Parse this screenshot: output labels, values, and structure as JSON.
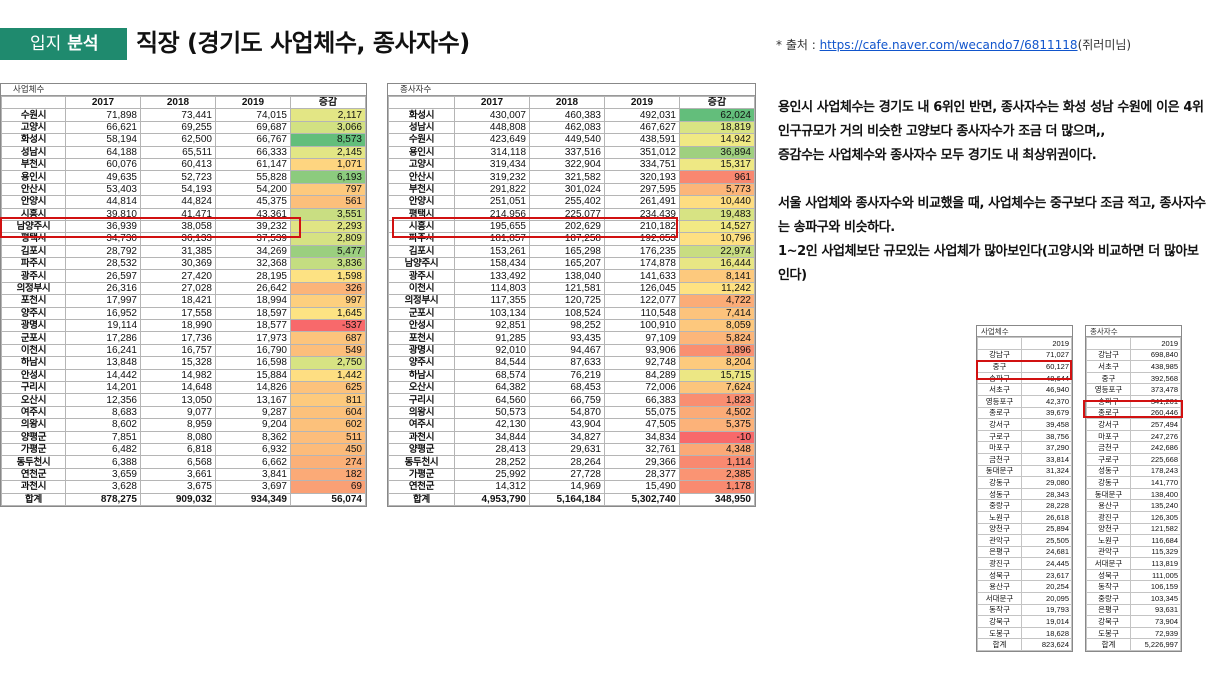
{
  "header": {
    "tag_plain": "입지",
    "tag_bold": "분석",
    "title": "직장 (경기도 사업체수, 종사자수)",
    "source_prefix": "* 출처 : ",
    "source_link": "https://cafe.naver.com/wecando7/6811118",
    "source_suffix": "(쥐러미님)"
  },
  "colors": {
    "header_bg": "#1f8a6e",
    "highlight_border": "#d11111",
    "positive_high": "#63be7b",
    "mid": "#ffeb84",
    "negative": "#f8696b"
  },
  "biz_table": {
    "caption": "사업체수",
    "columns": [
      "",
      "2017",
      "2018",
      "2019",
      "증감"
    ],
    "rows": [
      {
        "n": "수원시",
        "a": "71,898",
        "b": "73,441",
        "c": "74,015",
        "d": "2,117",
        "bg": "#e3e685"
      },
      {
        "n": "고양시",
        "a": "66,621",
        "b": "69,255",
        "c": "69,687",
        "d": "3,066",
        "bg": "#d2e182"
      },
      {
        "n": "화성시",
        "a": "58,194",
        "b": "62,500",
        "c": "66,767",
        "d": "8,573",
        "bg": "#63be7b"
      },
      {
        "n": "성남시",
        "a": "64,188",
        "b": "65,511",
        "c": "66,333",
        "d": "2,145",
        "bg": "#e3e685"
      },
      {
        "n": "부천시",
        "a": "60,076",
        "b": "60,413",
        "c": "61,147",
        "d": "1,071",
        "bg": "#fed580"
      },
      {
        "n": "용인시",
        "a": "49,635",
        "b": "52,723",
        "c": "55,828",
        "d": "6,193",
        "bg": "#8ccb7e"
      },
      {
        "n": "안산시",
        "a": "53,403",
        "b": "54,193",
        "c": "54,200",
        "d": "797",
        "bg": "#fdc97d"
      },
      {
        "n": "안양시",
        "a": "44,814",
        "b": "44,824",
        "c": "45,375",
        "d": "561",
        "bg": "#fcbf7b"
      },
      {
        "n": "시흥시",
        "a": "39,810",
        "b": "41,471",
        "c": "43,361",
        "d": "3,551",
        "bg": "#c9de82"
      },
      {
        "n": "남양주시",
        "a": "36,939",
        "b": "38,058",
        "c": "39,232",
        "d": "2,293",
        "bg": "#e0e584"
      },
      {
        "n": "평택시",
        "a": "34,730",
        "b": "36,133",
        "c": "37,539",
        "d": "2,809",
        "bg": "#d6e283"
      },
      {
        "n": "김포시",
        "a": "28,792",
        "b": "31,385",
        "c": "34,269",
        "d": "5,477",
        "bg": "#9bcf7f"
      },
      {
        "n": "파주시",
        "a": "28,532",
        "b": "30,369",
        "c": "32,368",
        "d": "3,836",
        "bg": "#c4dd81"
      },
      {
        "n": "광주시",
        "a": "26,597",
        "b": "27,420",
        "c": "28,195",
        "d": "1,598",
        "bg": "#fde283"
      },
      {
        "n": "의정부시",
        "a": "26,316",
        "b": "27,028",
        "c": "26,642",
        "d": "326",
        "bg": "#fbb479"
      },
      {
        "n": "포천시",
        "a": "17,997",
        "b": "18,421",
        "c": "18,994",
        "d": "997",
        "bg": "#fdcf7e"
      },
      {
        "n": "양주시",
        "a": "16,952",
        "b": "17,558",
        "c": "18,597",
        "d": "1,645",
        "bg": "#fde383"
      },
      {
        "n": "광명시",
        "a": "19,114",
        "b": "18,990",
        "c": "18,577",
        "d": "-537",
        "bg": "#f8696b"
      },
      {
        "n": "군포시",
        "a": "17,286",
        "b": "17,736",
        "c": "17,973",
        "d": "687",
        "bg": "#fcc47c"
      },
      {
        "n": "이천시",
        "a": "16,241",
        "b": "16,757",
        "c": "16,790",
        "d": "549",
        "bg": "#fcbe7b"
      },
      {
        "n": "하남시",
        "a": "13,848",
        "b": "15,328",
        "c": "16,598",
        "d": "2,750",
        "bg": "#d7e383"
      },
      {
        "n": "안성시",
        "a": "14,442",
        "b": "14,982",
        "c": "15,884",
        "d": "1,442",
        "bg": "#fede82"
      },
      {
        "n": "구리시",
        "a": "14,201",
        "b": "14,648",
        "c": "14,826",
        "d": "625",
        "bg": "#fcc27c"
      },
      {
        "n": "오산시",
        "a": "12,356",
        "b": "13,050",
        "c": "13,167",
        "d": "811",
        "bg": "#fdca7d"
      },
      {
        "n": "여주시",
        "a": "8,683",
        "b": "9,077",
        "c": "9,287",
        "d": "604",
        "bg": "#fcc17b"
      },
      {
        "n": "의왕시",
        "a": "8,602",
        "b": "8,959",
        "c": "9,204",
        "d": "602",
        "bg": "#fcc17b"
      },
      {
        "n": "양평군",
        "a": "7,851",
        "b": "8,080",
        "c": "8,362",
        "d": "511",
        "bg": "#fcbd7b"
      },
      {
        "n": "가평군",
        "a": "6,482",
        "b": "6,818",
        "c": "6,932",
        "d": "450",
        "bg": "#fcbb7a"
      },
      {
        "n": "동두천시",
        "a": "6,388",
        "b": "6,568",
        "c": "6,662",
        "d": "274",
        "bg": "#fbb078"
      },
      {
        "n": "연천군",
        "a": "3,659",
        "b": "3,661",
        "c": "3,841",
        "d": "182",
        "bg": "#fbaa77"
      },
      {
        "n": "과천시",
        "a": "3,628",
        "b": "3,675",
        "c": "3,697",
        "d": "69",
        "bg": "#faa075"
      }
    ],
    "total": {
      "n": "합계",
      "a": "878,275",
      "b": "909,032",
      "c": "934,349",
      "d": "56,074"
    }
  },
  "emp_table": {
    "caption": "종사자수",
    "columns": [
      "",
      "2017",
      "2018",
      "2019",
      "증감"
    ],
    "rows": [
      {
        "n": "화성시",
        "a": "430,007",
        "b": "460,383",
        "c": "492,031",
        "d": "62,024",
        "bg": "#63be7b"
      },
      {
        "n": "성남시",
        "a": "448,808",
        "b": "462,083",
        "c": "467,627",
        "d": "18,819",
        "bg": "#d9e483"
      },
      {
        "n": "수원시",
        "a": "423,649",
        "b": "449,540",
        "c": "438,591",
        "d": "14,942",
        "bg": "#f0e984"
      },
      {
        "n": "용인시",
        "a": "314,118",
        "b": "337,516",
        "c": "351,012",
        "d": "36,894",
        "bg": "#9fd07f"
      },
      {
        "n": "고양시",
        "a": "319,434",
        "b": "322,904",
        "c": "334,751",
        "d": "15,317",
        "bg": "#eee884"
      },
      {
        "n": "안산시",
        "a": "319,232",
        "b": "321,582",
        "c": "320,193",
        "d": "961",
        "bg": "#f98770"
      },
      {
        "n": "부천시",
        "a": "291,822",
        "b": "301,024",
        "c": "297,595",
        "d": "5,773",
        "bg": "#fcb579"
      },
      {
        "n": "안양시",
        "a": "251,051",
        "b": "255,402",
        "c": "261,491",
        "d": "10,440",
        "bg": "#fedd81"
      },
      {
        "n": "평택시",
        "a": "214,956",
        "b": "225,077",
        "c": "234,439",
        "d": "19,483",
        "bg": "#d7e383"
      },
      {
        "n": "시흥시",
        "a": "195,655",
        "b": "202,629",
        "c": "210,182",
        "d": "14,527",
        "bg": "#f2e984"
      },
      {
        "n": "파주시",
        "a": "181,857",
        "b": "187,258",
        "c": "192,653",
        "d": "10,796",
        "bg": "#fee082"
      },
      {
        "n": "김포시",
        "a": "153,261",
        "b": "165,298",
        "c": "176,235",
        "d": "22,974",
        "bg": "#c8dd81"
      },
      {
        "n": "남양주시",
        "a": "158,434",
        "b": "165,207",
        "c": "174,878",
        "d": "16,444",
        "bg": "#e8e684"
      },
      {
        "n": "광주시",
        "a": "133,492",
        "b": "138,040",
        "c": "141,633",
        "d": "8,141",
        "bg": "#fdc97d"
      },
      {
        "n": "이천시",
        "a": "114,803",
        "b": "121,581",
        "c": "126,045",
        "d": "11,242",
        "bg": "#fee282"
      },
      {
        "n": "의정부시",
        "a": "117,355",
        "b": "120,725",
        "c": "122,077",
        "d": "4,722",
        "bg": "#fbac77"
      },
      {
        "n": "군포시",
        "a": "103,134",
        "b": "108,524",
        "c": "110,548",
        "d": "7,414",
        "bg": "#fcc37c"
      },
      {
        "n": "안성시",
        "a": "92,851",
        "b": "98,252",
        "c": "100,910",
        "d": "8,059",
        "bg": "#fdc87d"
      },
      {
        "n": "포천시",
        "a": "91,285",
        "b": "93,435",
        "c": "97,109",
        "d": "5,824",
        "bg": "#fcb67a"
      },
      {
        "n": "광명시",
        "a": "92,010",
        "b": "94,467",
        "c": "93,906",
        "d": "1,896",
        "bg": "#f98f71"
      },
      {
        "n": "양주시",
        "a": "84,544",
        "b": "87,633",
        "c": "92,748",
        "d": "8,204",
        "bg": "#fdca7d"
      },
      {
        "n": "하남시",
        "a": "68,574",
        "b": "76,219",
        "c": "84,289",
        "d": "15,715",
        "bg": "#ece784"
      },
      {
        "n": "오산시",
        "a": "64,382",
        "b": "68,453",
        "c": "72,006",
        "d": "7,624",
        "bg": "#fcc57c"
      },
      {
        "n": "구리시",
        "a": "64,560",
        "b": "66,759",
        "c": "66,383",
        "d": "1,823",
        "bg": "#f98e71"
      },
      {
        "n": "의왕시",
        "a": "50,573",
        "b": "54,870",
        "c": "55,075",
        "d": "4,502",
        "bg": "#fbab77"
      },
      {
        "n": "여주시",
        "a": "42,130",
        "b": "43,904",
        "c": "47,505",
        "d": "5,375",
        "bg": "#fcb279"
      },
      {
        "n": "과천시",
        "a": "34,844",
        "b": "34,827",
        "c": "34,834",
        "d": "-10",
        "bg": "#f8696b"
      },
      {
        "n": "양평군",
        "a": "28,413",
        "b": "29,631",
        "c": "32,761",
        "d": "4,348",
        "bg": "#fba976"
      },
      {
        "n": "동두천시",
        "a": "28,252",
        "b": "28,264",
        "c": "29,366",
        "d": "1,114",
        "bg": "#f98970"
      },
      {
        "n": "가평군",
        "a": "25,992",
        "b": "27,728",
        "c": "28,377",
        "d": "2,385",
        "bg": "#fa9473"
      },
      {
        "n": "연천군",
        "a": "14,312",
        "b": "14,969",
        "c": "15,490",
        "d": "1,178",
        "bg": "#f98a70"
      }
    ],
    "total": {
      "n": "합계",
      "a": "4,953,790",
      "b": "5,164,184",
      "c": "5,302,740",
      "d": "348,950"
    }
  },
  "description": {
    "p1": "용인시 사업체수는 경기도 내 6위인 반면, 종사자수는 화성 성남 수원에 이은 4위",
    "p2": "인구규모가 거의 비슷한 고양보다 종사자수가 조금 더 많으며,,",
    "p3": "증감수는 사업체수와 종사자수 모두 경기도 내 최상위권이다.",
    "p4": "서울 사업체와 종사자수와 비교했을 때, 사업체수는 중구보다 조금 적고, 종사자수는 송파구와 비슷하다.",
    "p5": "1~2인 사업체보단 규모있는 사업체가 많아보인다(고양시와 비교하면 더 많아보인다)"
  },
  "seoul_biz": {
    "caption": "사업체수",
    "year": "2019",
    "rows": [
      [
        "강남구",
        "71,027"
      ],
      [
        "중구",
        "60,127"
      ],
      [
        "송파구",
        "48,644"
      ],
      [
        "서초구",
        "46,940"
      ],
      [
        "영등포구",
        "42,370"
      ],
      [
        "종로구",
        "39,679"
      ],
      [
        "강서구",
        "39,458"
      ],
      [
        "구로구",
        "38,756"
      ],
      [
        "마포구",
        "37,290"
      ],
      [
        "금천구",
        "33,814"
      ],
      [
        "동대문구",
        "31,324"
      ],
      [
        "강동구",
        "29,080"
      ],
      [
        "성동구",
        "28,343"
      ],
      [
        "중랑구",
        "28,228"
      ],
      [
        "노원구",
        "26,618"
      ],
      [
        "양천구",
        "25,894"
      ],
      [
        "관악구",
        "25,505"
      ],
      [
        "은평구",
        "24,681"
      ],
      [
        "광진구",
        "24,445"
      ],
      [
        "성북구",
        "23,617"
      ],
      [
        "용산구",
        "20,254"
      ],
      [
        "서대문구",
        "20,095"
      ],
      [
        "동작구",
        "19,793"
      ],
      [
        "강북구",
        "19,014"
      ],
      [
        "도봉구",
        "18,628"
      ]
    ],
    "total": [
      "합계",
      "823,624"
    ]
  },
  "seoul_emp": {
    "caption": "종사자수",
    "year": "2019",
    "rows": [
      [
        "강남구",
        "698,840"
      ],
      [
        "서초구",
        "438,985"
      ],
      [
        "중구",
        "392,568"
      ],
      [
        "영등포구",
        "373,478"
      ],
      [
        "송파구",
        "341,201"
      ],
      [
        "종로구",
        "260,446"
      ],
      [
        "강서구",
        "257,494"
      ],
      [
        "마포구",
        "247,276"
      ],
      [
        "금천구",
        "242,686"
      ],
      [
        "구로구",
        "225,668"
      ],
      [
        "성동구",
        "178,243"
      ],
      [
        "강동구",
        "141,770"
      ],
      [
        "동대문구",
        "138,400"
      ],
      [
        "용산구",
        "135,240"
      ],
      [
        "광진구",
        "126,305"
      ],
      [
        "양천구",
        "121,582"
      ],
      [
        "노원구",
        "116,684"
      ],
      [
        "관악구",
        "115,329"
      ],
      [
        "서대문구",
        "113,819"
      ],
      [
        "성북구",
        "111,005"
      ],
      [
        "동작구",
        "106,159"
      ],
      [
        "중랑구",
        "103,345"
      ],
      [
        "은평구",
        "93,631"
      ],
      [
        "강북구",
        "73,904"
      ],
      [
        "도봉구",
        "72,939"
      ]
    ],
    "total": [
      "합계",
      "5,226,997"
    ]
  }
}
